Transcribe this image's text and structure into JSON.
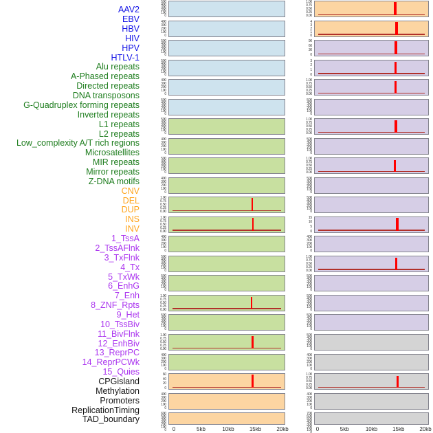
{
  "chart_data": {
    "type": "line",
    "subtype": "small-multiples genomic signal tracks",
    "title": "",
    "x_axis": {
      "tick_labels": [
        "0",
        "5kb",
        "10kb",
        "15kb",
        "20kb"
      ],
      "tick_kb": [
        0,
        5,
        10,
        15,
        20
      ],
      "domain_kb": [
        0,
        20
      ]
    },
    "columns": [
      "left",
      "right"
    ],
    "legend": "none",
    "grid": "off",
    "categories": {
      "virus": {
        "label_color": "#1212E6",
        "panel_color": "#CEE3EE"
      },
      "repeat": {
        "label_color": "#1E7D1E",
        "panel_color": "#C8E0A0"
      },
      "structural_variant": {
        "label_color": "#FFA41C",
        "panel_color": "#FCD5A2"
      },
      "chromatin_state": {
        "label_color": "#AB35EF",
        "panel_color": "#D6CEE6"
      },
      "genomic_feature": {
        "label_color": "#141414",
        "panel_color": "#D4D4D4"
      }
    },
    "colors": {
      "spike": "#FF0000",
      "trace": "#B1302A",
      "panel_border": "#84848E",
      "tick_text": "#3A3A3A",
      "axis_text": "#2A2A2A",
      "background": "#FFFFFF"
    },
    "panels": [
      {
        "label": "AAV2",
        "category": "virus",
        "column": "left",
        "row": 1,
        "yticks": [
          "500",
          "400",
          "300",
          "200",
          "100",
          "0"
        ],
        "spike": null,
        "trace": false
      },
      {
        "label": "EBV",
        "category": "virus",
        "column": "left",
        "row": 2,
        "yticks": [
          "400",
          "300",
          "200",
          "100",
          "0"
        ],
        "spike": null,
        "trace": false
      },
      {
        "label": "HBV",
        "category": "virus",
        "column": "left",
        "row": 3,
        "yticks": [
          "500",
          "400",
          "300",
          "200",
          "100",
          "0"
        ],
        "spike": null,
        "trace": false
      },
      {
        "label": "HIV",
        "category": "virus",
        "column": "left",
        "row": 4,
        "yticks": [
          "500",
          "400",
          "300",
          "200",
          "100",
          "0"
        ],
        "spike": null,
        "trace": false
      },
      {
        "label": "HPV",
        "category": "virus",
        "column": "left",
        "row": 5,
        "yticks": [
          "400",
          "300",
          "200",
          "100",
          "0"
        ],
        "spike": null,
        "trace": false
      },
      {
        "label": "HTLV-1",
        "category": "virus",
        "column": "left",
        "row": 6,
        "yticks": [
          "500",
          "400",
          "300",
          "200",
          "100",
          "0"
        ],
        "spike": null,
        "trace": false
      },
      {
        "label": "Alu repeats",
        "category": "repeat",
        "column": "left",
        "row": 7,
        "yticks": [
          "500",
          "400",
          "300",
          "200",
          "100",
          "0"
        ],
        "spike": null,
        "trace": false
      },
      {
        "label": "A-Phased repeats",
        "category": "repeat",
        "column": "left",
        "row": 8,
        "yticks": [
          "400",
          "300",
          "200",
          "100",
          "0"
        ],
        "spike": null,
        "trace": false
      },
      {
        "label": "Directed repeats",
        "category": "repeat",
        "column": "left",
        "row": 9,
        "yticks": [
          "500",
          "400",
          "300",
          "200",
          "100",
          "0"
        ],
        "spike": null,
        "trace": false
      },
      {
        "label": "DNA transposons",
        "category": "repeat",
        "column": "left",
        "row": 10,
        "yticks": [
          "400",
          "300",
          "200",
          "100",
          "0"
        ],
        "spike": null,
        "trace": false
      },
      {
        "label": "G-Quadruplex forming repeats",
        "category": "repeat",
        "column": "left",
        "row": 11,
        "yticks": [
          "1.00",
          "0.75",
          "0.50",
          "0.25",
          "0.00"
        ],
        "spike": {
          "kb": 14.5,
          "w": 2,
          "h": 1.0
        },
        "trace": true
      },
      {
        "label": "Inverted repeats",
        "category": "repeat",
        "column": "left",
        "row": 12,
        "yticks": [
          "1.00",
          "0.75",
          "0.50",
          "0.25",
          "0.00"
        ],
        "spike": {
          "kb": 14.6,
          "w": 2,
          "h": 1.0
        },
        "trace": true
      },
      {
        "label": "L1 repeats",
        "category": "repeat",
        "column": "left",
        "row": 13,
        "yticks": [
          "400",
          "300",
          "200",
          "100",
          "0"
        ],
        "spike": null,
        "trace": false
      },
      {
        "label": "L2 repeats",
        "category": "repeat",
        "column": "left",
        "row": 14,
        "yticks": [
          "500",
          "400",
          "300",
          "200",
          "100",
          "0"
        ],
        "spike": null,
        "trace": false
      },
      {
        "label": "Low_complexity A/T rich regions",
        "category": "repeat",
        "column": "left",
        "row": 15,
        "yticks": [
          "500",
          "400",
          "300",
          "200",
          "100",
          "0"
        ],
        "spike": null,
        "trace": false
      },
      {
        "label": "Microsatellites",
        "category": "repeat",
        "column": "left",
        "row": 16,
        "yticks": [
          "1.00",
          "0.75",
          "0.50",
          "0.25",
          "0.00"
        ],
        "spike": {
          "kb": 14.4,
          "w": 2,
          "h": 0.97
        },
        "trace": true
      },
      {
        "label": "MIR repeats",
        "category": "repeat",
        "column": "left",
        "row": 17,
        "yticks": [
          "500",
          "400",
          "300",
          "200",
          "100",
          "0"
        ],
        "spike": null,
        "trace": false
      },
      {
        "label": "Mirror repeats",
        "category": "repeat",
        "column": "left",
        "row": 18,
        "yticks": [
          "1.00",
          "0.75",
          "0.50",
          "0.25",
          "0.00"
        ],
        "spike": {
          "kb": 14.5,
          "w": 3,
          "h": 0.97
        },
        "trace": true
      },
      {
        "label": "Z-DNA motifs",
        "category": "repeat",
        "column": "left",
        "row": 19,
        "yticks": [
          "400",
          "300",
          "200",
          "100",
          "0"
        ],
        "spike": null,
        "trace": false
      },
      {
        "label": "CNV",
        "category": "structural_variant",
        "column": "left",
        "row": 20,
        "yticks": [
          "60",
          "40",
          "20",
          "0"
        ],
        "spike": {
          "kb": 14.5,
          "w": 3,
          "h": 1.0
        },
        "trace": true
      },
      {
        "label": "DEL",
        "category": "structural_variant",
        "column": "left",
        "row": 21,
        "yticks": [
          "400",
          "300",
          "200",
          "100",
          "0"
        ],
        "spike": null,
        "trace": false
      },
      {
        "label": "DUP",
        "category": "structural_variant",
        "column": "left",
        "row": 22,
        "yticks": [
          "600",
          "500",
          "400",
          "300",
          "200",
          "100",
          "0"
        ],
        "spike": null,
        "trace": false
      },
      {
        "label": "INS",
        "category": "structural_variant",
        "column": "right",
        "row": 1,
        "yticks": [
          "1.00",
          "0.75",
          "0.50",
          "0.25",
          "0.00"
        ],
        "spike": {
          "kb": 14.5,
          "w": 4,
          "h": 1.0
        },
        "trace": true
      },
      {
        "label": "INV",
        "category": "structural_variant",
        "column": "right",
        "row": 2,
        "yticks": [
          "4",
          "3",
          "2",
          "1",
          "0"
        ],
        "spike": {
          "kb": 14.7,
          "w": 4,
          "h": 1.0
        },
        "trace": true
      },
      {
        "label": "1_TssA",
        "category": "chromatin_state",
        "column": "right",
        "row": 3,
        "yticks": [
          "90",
          "60",
          "30",
          "0"
        ],
        "spike": {
          "kb": 14.6,
          "w": 4,
          "h": 1.0
        },
        "trace": true
      },
      {
        "label": "2_TssAFlnk",
        "category": "chromatin_state",
        "column": "right",
        "row": 4,
        "yticks": [
          "3",
          "2",
          "1",
          "0"
        ],
        "spike": {
          "kb": 14.5,
          "w": 2.5,
          "h": 0.9
        },
        "trace": true
      },
      {
        "label": "3_TxFlnk",
        "category": "chromatin_state",
        "column": "right",
        "row": 5,
        "yticks": [
          "1.00",
          "0.75",
          "0.50",
          "0.25",
          "0.00"
        ],
        "spike": {
          "kb": 14.5,
          "w": 3,
          "h": 0.95
        },
        "trace": true
      },
      {
        "label": "4_Tx",
        "category": "chromatin_state",
        "column": "right",
        "row": 6,
        "yticks": [
          "500",
          "400",
          "300",
          "200",
          "100",
          "0"
        ],
        "spike": null,
        "trace": false
      },
      {
        "label": "5_TxWk",
        "category": "chromatin_state",
        "column": "right",
        "row": 7,
        "yticks": [
          "1.00",
          "0.75",
          "0.50",
          "0.25",
          "0.00"
        ],
        "spike": {
          "kb": 14.6,
          "w": 4,
          "h": 0.95
        },
        "trace": true
      },
      {
        "label": "6_EnhG",
        "category": "chromatin_state",
        "column": "right",
        "row": 8,
        "yticks": [
          "500",
          "400",
          "300",
          "200",
          "100",
          "0"
        ],
        "spike": null,
        "trace": false
      },
      {
        "label": "7_Enh",
        "category": "chromatin_state",
        "column": "right",
        "row": 9,
        "yticks": [
          "1.00",
          "0.75",
          "0.50",
          "0.25",
          "0.00"
        ],
        "spike": {
          "kb": 14.4,
          "w": 2.5,
          "h": 0.92
        },
        "trace": true
      },
      {
        "label": "8_ZNF_Rpts",
        "category": "chromatin_state",
        "column": "right",
        "row": 10,
        "yticks": [
          "500",
          "400",
          "300",
          "200",
          "100",
          "0"
        ],
        "spike": null,
        "trace": false
      },
      {
        "label": "9_Het",
        "category": "chromatin_state",
        "column": "right",
        "row": 11,
        "yticks": [
          "500",
          "400",
          "300",
          "200",
          "100",
          "0"
        ],
        "spike": null,
        "trace": false
      },
      {
        "label": "10_TssBiv",
        "category": "chromatin_state",
        "column": "right",
        "row": 12,
        "yticks": [
          "15",
          "10",
          "5",
          "0"
        ],
        "spike": {
          "kb": 14.9,
          "w": 4,
          "h": 1.0
        },
        "trace": true
      },
      {
        "label": "11_BivFlnk",
        "category": "chromatin_state",
        "column": "right",
        "row": 13,
        "yticks": [
          "400",
          "300",
          "200",
          "100",
          "0"
        ],
        "spike": null,
        "trace": false
      },
      {
        "label": "12_EnhBiv",
        "category": "chromatin_state",
        "column": "right",
        "row": 14,
        "yticks": [
          "1.00",
          "0.75",
          "0.50",
          "0.25",
          "0.00"
        ],
        "spike": {
          "kb": 14.6,
          "w": 3,
          "h": 0.95
        },
        "trace": true
      },
      {
        "label": "13_ReprPC",
        "category": "chromatin_state",
        "column": "right",
        "row": 15,
        "yticks": [
          "500",
          "400",
          "300",
          "200",
          "100",
          "0"
        ],
        "spike": null,
        "trace": false
      },
      {
        "label": "14_ReprPCWk",
        "category": "chromatin_state",
        "column": "right",
        "row": 16,
        "yticks": [
          "500",
          "400",
          "300",
          "200",
          "100",
          "0"
        ],
        "spike": null,
        "trace": false
      },
      {
        "label": "15_Quies",
        "category": "chromatin_state",
        "column": "right",
        "row": 17,
        "yticks": [
          "500",
          "400",
          "300",
          "200",
          "100",
          "0"
        ],
        "spike": null,
        "trace": false
      },
      {
        "label": "CPGisland",
        "category": "genomic_feature",
        "column": "right",
        "row": 18,
        "yticks": [
          "500",
          "400",
          "300",
          "200",
          "100",
          "0"
        ],
        "spike": null,
        "trace": false
      },
      {
        "label": "Methylation",
        "category": "genomic_feature",
        "column": "right",
        "row": 19,
        "yticks": [
          "400",
          "300",
          "200",
          "100",
          "0"
        ],
        "spike": null,
        "trace": false
      },
      {
        "label": "Promoters",
        "category": "genomic_feature",
        "column": "right",
        "row": 20,
        "yticks": [
          "1.00",
          "0.75",
          "0.50",
          "0.25",
          "0.00"
        ],
        "spike": {
          "kb": 14.9,
          "w": 3.5,
          "h": 0.9
        },
        "trace": true
      },
      {
        "label": "ReplicationTiming",
        "category": "genomic_feature",
        "column": "right",
        "row": 21,
        "yticks": [
          "400",
          "300",
          "200",
          "100",
          "0"
        ],
        "spike": null,
        "trace": false
      },
      {
        "label": "TAD_boundary",
        "category": "genomic_feature",
        "column": "right",
        "row": 22,
        "yticks": [
          "700",
          "600",
          "500",
          "400",
          "300",
          "200",
          "100",
          "0"
        ],
        "spike": null,
        "trace": false
      }
    ]
  }
}
